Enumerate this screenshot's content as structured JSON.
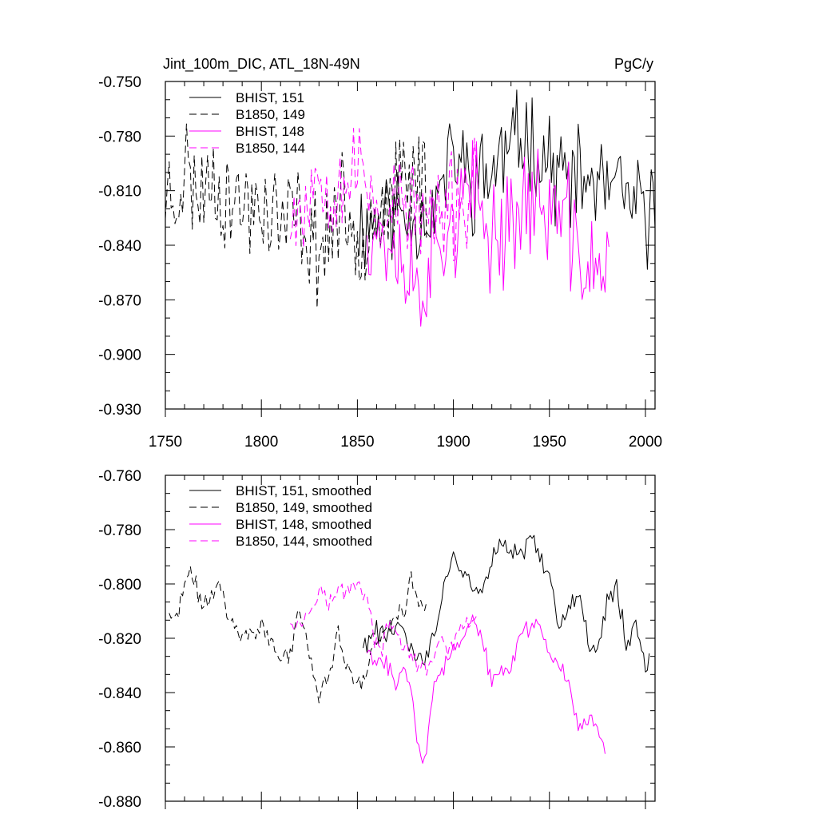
{
  "colors": {
    "black": "#000000",
    "magenta": "#ff00ff"
  },
  "chart_data": [
    {
      "type": "line",
      "title": "Jint_100m_DIC, ATL_18N-49N",
      "units": "PgC/y",
      "xlim": [
        1750,
        2005
      ],
      "ylim": [
        -0.93,
        -0.75
      ],
      "xticks": [
        1750,
        1800,
        1850,
        1900,
        1950,
        2000
      ],
      "xtick_labels": [
        "1750",
        "1800",
        "1850",
        "1900",
        "1950",
        "2000"
      ],
      "yticks": [
        -0.75,
        -0.78,
        -0.81,
        -0.84,
        -0.87,
        -0.9,
        -0.93
      ],
      "ytick_labels": [
        "-0.750",
        "-0.780",
        "-0.810",
        "-0.840",
        "-0.870",
        "-0.900",
        "-0.930"
      ],
      "legend_position": "top-left",
      "series": [
        {
          "name": "BHIST, 151",
          "color": "#000000",
          "dash": "solid",
          "x_start": 1850,
          "x_end": 2005,
          "anchors": [
            [
              1850,
              -0.83
            ],
            [
              1860,
              -0.825
            ],
            [
              1870,
              -0.82
            ],
            [
              1880,
              -0.825
            ],
            [
              1890,
              -0.82
            ],
            [
              1900,
              -0.79
            ],
            [
              1910,
              -0.805
            ],
            [
              1920,
              -0.8
            ],
            [
              1930,
              -0.785
            ],
            [
              1940,
              -0.78
            ],
            [
              1950,
              -0.795
            ],
            [
              1960,
              -0.805
            ],
            [
              1970,
              -0.805
            ],
            [
              1980,
              -0.81
            ],
            [
              1990,
              -0.815
            ],
            [
              2000,
              -0.825
            ],
            [
              2005,
              -0.82
            ]
          ],
          "amp": 0.022,
          "seed": 11
        },
        {
          "name": "B1850, 149",
          "color": "#000000",
          "dash": "dashed",
          "x_start": 1750,
          "x_end": 1886,
          "anchors": [
            [
              1750,
              -0.81
            ],
            [
              1755,
              -0.815
            ],
            [
              1760,
              -0.795
            ],
            [
              1765,
              -0.81
            ],
            [
              1770,
              -0.808
            ],
            [
              1775,
              -0.8
            ],
            [
              1780,
              -0.812
            ],
            [
              1790,
              -0.82
            ],
            [
              1800,
              -0.815
            ],
            [
              1810,
              -0.828
            ],
            [
              1820,
              -0.825
            ],
            [
              1830,
              -0.843
            ],
            [
              1840,
              -0.82
            ],
            [
              1850,
              -0.835
            ],
            [
              1860,
              -0.818
            ],
            [
              1870,
              -0.815
            ],
            [
              1880,
              -0.8
            ],
            [
              1886,
              -0.806
            ]
          ],
          "amp": 0.024,
          "seed": 23
        },
        {
          "name": "BHIST, 148",
          "color": "#ff00ff",
          "dash": "solid",
          "x_start": 1855,
          "x_end": 1981,
          "anchors": [
            [
              1855,
              -0.825
            ],
            [
              1865,
              -0.835
            ],
            [
              1875,
              -0.85
            ],
            [
              1882,
              -0.865
            ],
            [
              1890,
              -0.84
            ],
            [
              1900,
              -0.825
            ],
            [
              1910,
              -0.815
            ],
            [
              1920,
              -0.835
            ],
            [
              1930,
              -0.825
            ],
            [
              1940,
              -0.815
            ],
            [
              1950,
              -0.82
            ],
            [
              1960,
              -0.83
            ],
            [
              1965,
              -0.85
            ],
            [
              1975,
              -0.852
            ],
            [
              1981,
              -0.86
            ]
          ],
          "amp": 0.026,
          "seed": 37
        },
        {
          "name": "B1850, 144",
          "color": "#ff00ff",
          "dash": "dashed",
          "x_start": 1815,
          "x_end": 1912,
          "anchors": [
            [
              1815,
              -0.815
            ],
            [
              1820,
              -0.82
            ],
            [
              1830,
              -0.8
            ],
            [
              1840,
              -0.805
            ],
            [
              1850,
              -0.8
            ],
            [
              1855,
              -0.805
            ],
            [
              1860,
              -0.82
            ],
            [
              1870,
              -0.818
            ],
            [
              1880,
              -0.82
            ],
            [
              1890,
              -0.83
            ],
            [
              1900,
              -0.82
            ],
            [
              1912,
              -0.815
            ]
          ],
          "amp": 0.024,
          "seed": 53
        }
      ]
    },
    {
      "type": "line",
      "xlim": [
        1750,
        2005
      ],
      "ylim": [
        -0.88,
        -0.76
      ],
      "xticks": [
        1750,
        1800,
        1850,
        1900,
        1950,
        2000
      ],
      "yticks": [
        -0.76,
        -0.78,
        -0.8,
        -0.82,
        -0.84,
        -0.86,
        -0.88
      ],
      "ytick_labels": [
        "-0.760",
        "-0.780",
        "-0.800",
        "-0.820",
        "-0.840",
        "-0.860",
        "-0.880"
      ],
      "legend_position": "top-left",
      "series": [
        {
          "name": "BHIST, 151, smoothed",
          "color": "#000000",
          "dash": "solid",
          "x_start": 1853,
          "x_end": 2002,
          "anchors": [
            [
              1853,
              -0.823
            ],
            [
              1858,
              -0.818
            ],
            [
              1865,
              -0.818
            ],
            [
              1870,
              -0.815
            ],
            [
              1875,
              -0.82
            ],
            [
              1880,
              -0.828
            ],
            [
              1885,
              -0.828
            ],
            [
              1890,
              -0.82
            ],
            [
              1895,
              -0.8
            ],
            [
              1900,
              -0.79
            ],
            [
              1905,
              -0.797
            ],
            [
              1910,
              -0.802
            ],
            [
              1915,
              -0.803
            ],
            [
              1920,
              -0.79
            ],
            [
              1925,
              -0.786
            ],
            [
              1930,
              -0.79
            ],
            [
              1935,
              -0.79
            ],
            [
              1940,
              -0.781
            ],
            [
              1945,
              -0.79
            ],
            [
              1950,
              -0.8
            ],
            [
              1955,
              -0.815
            ],
            [
              1960,
              -0.808
            ],
            [
              1965,
              -0.805
            ],
            [
              1970,
              -0.82
            ],
            [
              1975,
              -0.825
            ],
            [
              1980,
              -0.808
            ],
            [
              1985,
              -0.8
            ],
            [
              1990,
              -0.822
            ],
            [
              1995,
              -0.815
            ],
            [
              2000,
              -0.83
            ],
            [
              2002,
              -0.828
            ]
          ],
          "amp": 0.0035,
          "seed": 61
        },
        {
          "name": "B1850, 149, smoothed",
          "color": "#000000",
          "dash": "dashed",
          "x_start": 1752,
          "x_end": 1886,
          "anchors": [
            [
              1752,
              -0.81
            ],
            [
              1755,
              -0.815
            ],
            [
              1760,
              -0.8
            ],
            [
              1763,
              -0.796
            ],
            [
              1770,
              -0.808
            ],
            [
              1775,
              -0.803
            ],
            [
              1778,
              -0.8
            ],
            [
              1782,
              -0.81
            ],
            [
              1790,
              -0.82
            ],
            [
              1795,
              -0.817
            ],
            [
              1800,
              -0.815
            ],
            [
              1805,
              -0.822
            ],
            [
              1810,
              -0.828
            ],
            [
              1815,
              -0.825
            ],
            [
              1820,
              -0.81
            ],
            [
              1825,
              -0.825
            ],
            [
              1830,
              -0.842
            ],
            [
              1835,
              -0.835
            ],
            [
              1840,
              -0.818
            ],
            [
              1845,
              -0.832
            ],
            [
              1850,
              -0.838
            ],
            [
              1855,
              -0.832
            ],
            [
              1860,
              -0.82
            ],
            [
              1865,
              -0.818
            ],
            [
              1870,
              -0.812
            ],
            [
              1875,
              -0.808
            ],
            [
              1878,
              -0.798
            ],
            [
              1882,
              -0.808
            ],
            [
              1886,
              -0.806
            ]
          ],
          "amp": 0.003,
          "seed": 71
        },
        {
          "name": "BHIST, 148, smoothed",
          "color": "#ff00ff",
          "dash": "solid",
          "x_start": 1855,
          "x_end": 1979,
          "anchors": [
            [
              1855,
              -0.825
            ],
            [
              1860,
              -0.83
            ],
            [
              1865,
              -0.828
            ],
            [
              1870,
              -0.838
            ],
            [
              1875,
              -0.83
            ],
            [
              1878,
              -0.835
            ],
            [
              1882,
              -0.862
            ],
            [
              1885,
              -0.865
            ],
            [
              1890,
              -0.838
            ],
            [
              1895,
              -0.83
            ],
            [
              1900,
              -0.825
            ],
            [
              1905,
              -0.822
            ],
            [
              1910,
              -0.812
            ],
            [
              1915,
              -0.82
            ],
            [
              1920,
              -0.838
            ],
            [
              1925,
              -0.832
            ],
            [
              1930,
              -0.83
            ],
            [
              1935,
              -0.82
            ],
            [
              1940,
              -0.815
            ],
            [
              1945,
              -0.815
            ],
            [
              1950,
              -0.825
            ],
            [
              1955,
              -0.83
            ],
            [
              1960,
              -0.835
            ],
            [
              1965,
              -0.852
            ],
            [
              1970,
              -0.85
            ],
            [
              1975,
              -0.85
            ],
            [
              1979,
              -0.862
            ]
          ],
          "amp": 0.003,
          "seed": 83
        },
        {
          "name": "B1850, 144, smoothed",
          "color": "#ff00ff",
          "dash": "dashed",
          "x_start": 1815,
          "x_end": 1912,
          "anchors": [
            [
              1815,
              -0.812
            ],
            [
              1820,
              -0.815
            ],
            [
              1825,
              -0.81
            ],
            [
              1830,
              -0.8
            ],
            [
              1835,
              -0.808
            ],
            [
              1840,
              -0.803
            ],
            [
              1845,
              -0.802
            ],
            [
              1850,
              -0.799
            ],
            [
              1855,
              -0.805
            ],
            [
              1858,
              -0.818
            ],
            [
              1862,
              -0.825
            ],
            [
              1867,
              -0.815
            ],
            [
              1872,
              -0.82
            ],
            [
              1877,
              -0.825
            ],
            [
              1882,
              -0.832
            ],
            [
              1887,
              -0.83
            ],
            [
              1892,
              -0.822
            ],
            [
              1897,
              -0.825
            ],
            [
              1903,
              -0.818
            ],
            [
              1908,
              -0.815
            ],
            [
              1912,
              -0.812
            ]
          ],
          "amp": 0.003,
          "seed": 97
        }
      ]
    }
  ]
}
